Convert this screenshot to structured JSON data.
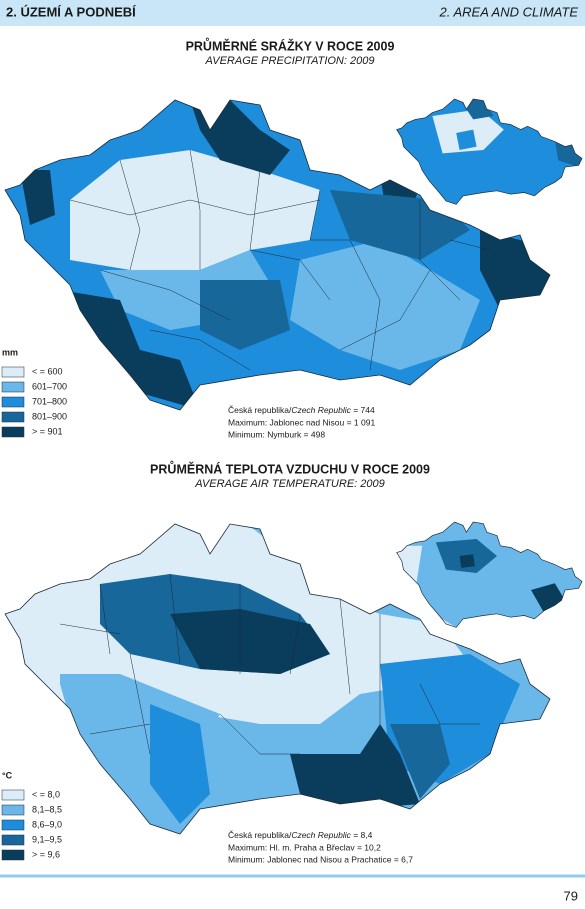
{
  "header": {
    "left": "2. ÚZEMÍ A PODNEBÍ",
    "right": "2. AREA AND CLIMATE"
  },
  "maps": [
    {
      "title": "PRŮMĚRNÉ SRÁŽKY V ROCE 2009",
      "subtitle": "AVERAGE PRECIPITATION: 2009",
      "unit": "mm",
      "legend": [
        {
          "label": "< = 600",
          "color": "#dcedf8"
        },
        {
          "label": "601–700",
          "color": "#6ab8ea"
        },
        {
          "label": "701–800",
          "color": "#1e8ddb"
        },
        {
          "label": "801–900",
          "color": "#18679b"
        },
        {
          "label": "> = 901",
          "color": "#0a3c5c"
        }
      ],
      "notes": [
        {
          "prefix": "Česká republika/",
          "italic": "Czech Republic",
          "suffix": " = 744"
        },
        "Maximum: Jablonec nad Nisou = 1 091",
        "Minimum: Nymburk = 498"
      ]
    },
    {
      "title": "PRŮMĚRNÁ TEPLOTA VZDUCHU V ROCE 2009",
      "subtitle": "AVERAGE AIR TEMPERATURE: 2009",
      "unit": "°C",
      "legend": [
        {
          "label": "< = 8,0",
          "color": "#dcedf8"
        },
        {
          "label": "8,1–8,5",
          "color": "#6ab8ea"
        },
        {
          "label": "8,6–9,0",
          "color": "#1e8ddb"
        },
        {
          "label": "9,1–9,5",
          "color": "#18679b"
        },
        {
          "label": "> = 9,6",
          "color": "#0a3c5c"
        }
      ],
      "notes": [
        {
          "prefix": "Česká republika/",
          "italic": "Czech Republic",
          "suffix": " = 8,4"
        },
        "Maximum: Hl. m. Praha a Břeclav = 10,2",
        "Minimum: Jablonec nad Nisou a Prachatice = 6,7"
      ]
    }
  ],
  "page_number": "79"
}
